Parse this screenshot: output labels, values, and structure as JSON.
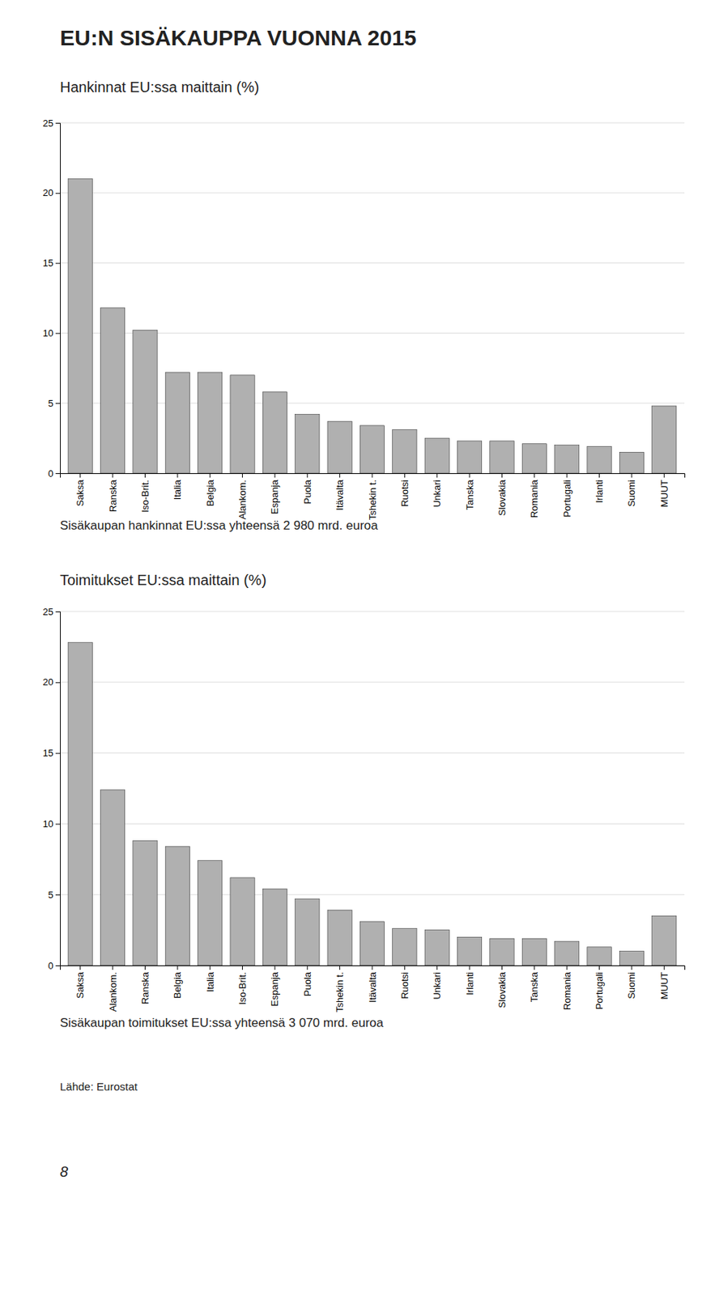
{
  "title": "EU:N SISÄKAUPPA VUONNA 2015",
  "source": "Lähde: Eurostat",
  "page_number": "8",
  "chart_data": [
    {
      "type": "bar",
      "subtitle": "Hankinnat EU:ssa maittain (%)",
      "categories": [
        "Saksa",
        "Ranska",
        "Iso-Brit.",
        "Italia",
        "Belgia",
        "Alankom.",
        "Espanja",
        "Puola",
        "Itävalta",
        "Tshekin t.",
        "Ruotsi",
        "Unkari",
        "Tanska",
        "Slovakia",
        "Romania",
        "Portugali",
        "Irlanti",
        "Suomi",
        "MUUT"
      ],
      "values": [
        21.0,
        11.8,
        10.2,
        7.2,
        7.2,
        7.0,
        5.8,
        4.2,
        3.7,
        3.4,
        3.1,
        2.5,
        2.3,
        2.3,
        2.1,
        2.0,
        1.9,
        1.5,
        4.8
      ],
      "color": "#b0b0b0",
      "ylim": [
        0,
        25
      ],
      "yticks": [
        0,
        5,
        10,
        15,
        20,
        25
      ],
      "grid": true,
      "annotations": [
        "Sisäkaupan hankinnat EU:ssa yhteensä 2 980 mrd. euroa"
      ]
    },
    {
      "type": "bar",
      "subtitle": "Toimitukset EU:ssa maittain (%)",
      "categories": [
        "Saksa",
        "Alankom.",
        "Ranska",
        "Belgia",
        "Italia",
        "Iso-Brit.",
        "Espanja",
        "Puola",
        "Tshekin t.",
        "Itävalta",
        "Ruotsi",
        "Unkari",
        "Irlanti",
        "Slovakia",
        "Tanska",
        "Romania",
        "Portugali",
        "Suomi",
        "MUUT"
      ],
      "values": [
        22.8,
        12.4,
        8.8,
        8.4,
        7.4,
        6.2,
        5.4,
        4.7,
        3.9,
        3.1,
        2.6,
        2.5,
        2.0,
        1.9,
        1.9,
        1.7,
        1.3,
        1.0,
        3.5
      ],
      "color": "#b0b0b0",
      "ylim": [
        0,
        25
      ],
      "yticks": [
        0,
        5,
        10,
        15,
        20,
        25
      ],
      "grid": true,
      "annotations": [
        "Sisäkaupan toimitukset EU:ssa yhteensä 3 070 mrd. euroa"
      ]
    }
  ]
}
